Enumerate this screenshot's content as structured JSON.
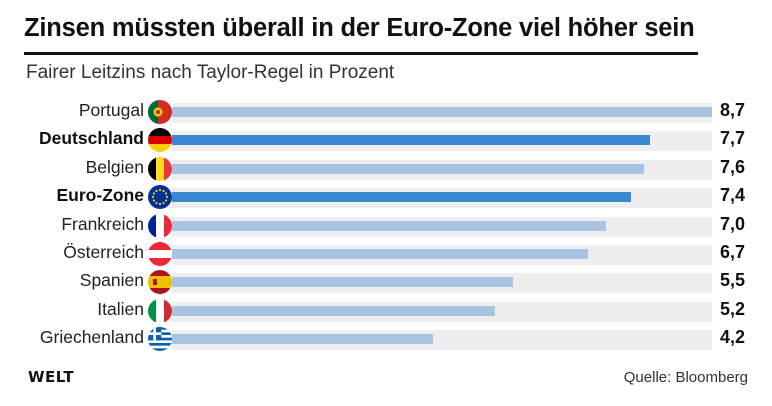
{
  "header": {
    "title": "Zinsen müssten überall in der Euro-Zone viel höher sein",
    "subtitle": "Fairer Leitzins nach Taylor-Regel in Prozent"
  },
  "footer": {
    "logo": "WELT",
    "source": "Quelle: Bloomberg"
  },
  "colors": {
    "bar": "#a9c3e3",
    "bar_highlight": "#3a88cf",
    "track": "#eeeeee"
  },
  "chart_data": {
    "type": "bar",
    "orientation": "horizontal",
    "title": "Zinsen müssten überall in der Euro-Zone viel höher sein",
    "subtitle": "Fairer Leitzins nach Taylor-Regel in Prozent",
    "xlabel": "",
    "ylabel": "",
    "xlim": [
      0,
      8.7
    ],
    "grid": false,
    "categories": [
      "Portugal",
      "Deutschland",
      "Belgien",
      "Euro-Zone",
      "Frankreich",
      "Österreich",
      "Spanien",
      "Italien",
      "Griechenland"
    ],
    "values": [
      8.7,
      7.7,
      7.6,
      7.4,
      7.0,
      6.7,
      5.5,
      5.2,
      4.2
    ],
    "value_labels": [
      "8,7",
      "7,7",
      "7,6",
      "7,4",
      "7,0",
      "6,7",
      "5,5",
      "5,2",
      "4,2"
    ],
    "highlighted": [
      "Deutschland",
      "Euro-Zone"
    ],
    "flags": [
      "portugal-flag-icon",
      "germany-flag-icon",
      "belgium-flag-icon",
      "eu-flag-icon",
      "france-flag-icon",
      "austria-flag-icon",
      "spain-flag-icon",
      "italy-flag-icon",
      "greece-flag-icon"
    ]
  }
}
